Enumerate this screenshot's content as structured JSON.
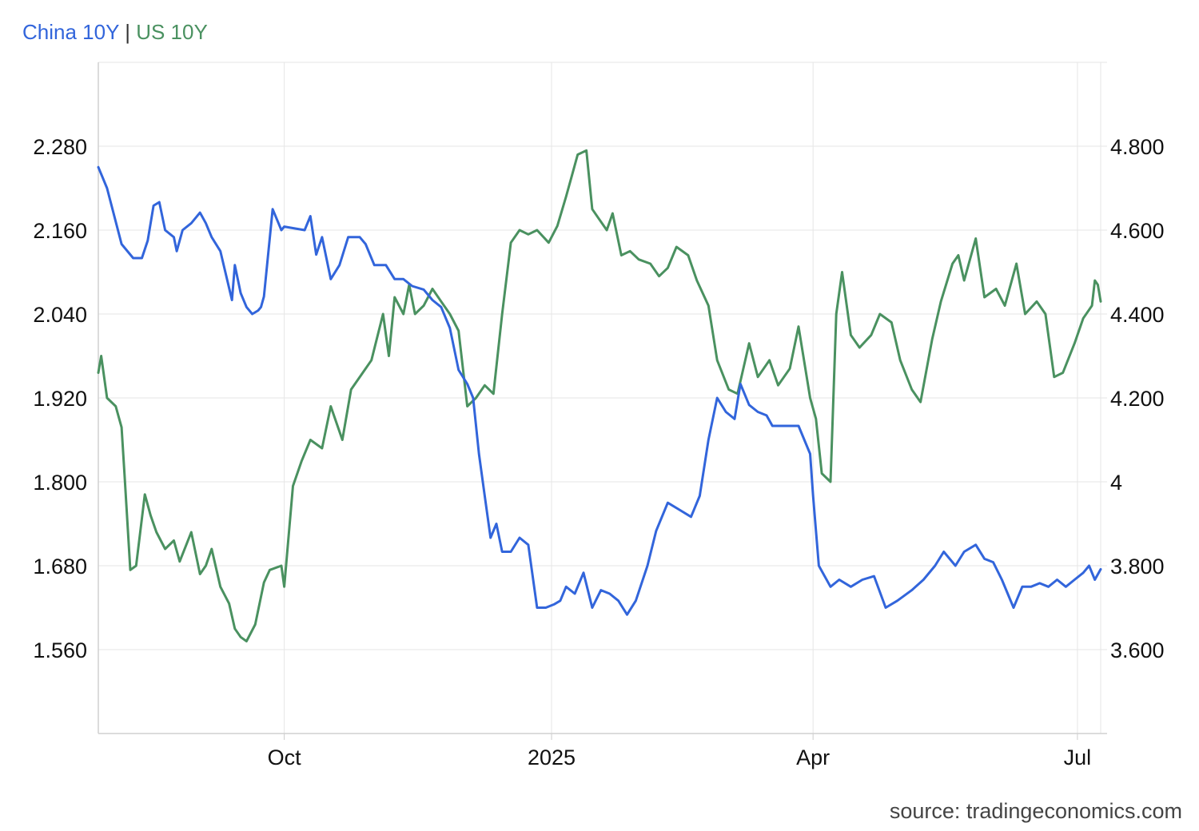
{
  "legend": {
    "china": "China 10Y",
    "separator": "|",
    "us": "US 10Y"
  },
  "source": "source: tradingeconomics.com",
  "colors": {
    "china": "#3265db",
    "us": "#4a9160",
    "grid": "#e6e6e6",
    "separator": "#333333"
  },
  "chart_data": {
    "type": "line",
    "title": "",
    "x_ticks": [
      {
        "label": "Oct",
        "date": "2024-10-01"
      },
      {
        "label": "2025",
        "date": "2025-01-01"
      },
      {
        "label": "Apr",
        "date": "2025-04-01"
      },
      {
        "label": "Jul",
        "date": "2025-07-01"
      }
    ],
    "x_range": [
      "2024-07-29",
      "2025-07-09"
    ],
    "y_left": {
      "ticks": [
        "1.560",
        "1.680",
        "1.800",
        "1.920",
        "2.040",
        "2.160",
        "2.280"
      ],
      "range": [
        1.44,
        2.4
      ]
    },
    "y_right": {
      "ticks": [
        "3.600",
        "3.800",
        "4",
        "4.200",
        "4.400",
        "4.600",
        "4.800"
      ],
      "range": [
        3.4,
        5.0
      ]
    },
    "grid": true,
    "legend_position": "top-left",
    "series": [
      {
        "name": "China 10Y",
        "axis": "left",
        "x": [
          "2024-07-29",
          "2024-08-01",
          "2024-08-06",
          "2024-08-10",
          "2024-08-13",
          "2024-08-15",
          "2024-08-17",
          "2024-08-19",
          "2024-08-21",
          "2024-08-24",
          "2024-08-25",
          "2024-08-27",
          "2024-08-30",
          "2024-09-02",
          "2024-09-04",
          "2024-09-05",
          "2024-09-06",
          "2024-09-09",
          "2024-09-13",
          "2024-09-14",
          "2024-09-16",
          "2024-09-18",
          "2024-09-20",
          "2024-09-22",
          "2024-09-23",
          "2024-09-24",
          "2024-09-27",
          "2024-09-29",
          "2024-09-30",
          "2024-10-01",
          "2024-10-08",
          "2024-10-10",
          "2024-10-12",
          "2024-10-14",
          "2024-10-17",
          "2024-10-20",
          "2024-10-23",
          "2024-10-27",
          "2024-10-29",
          "2024-11-01",
          "2024-11-05",
          "2024-11-08",
          "2024-11-11",
          "2024-11-14",
          "2024-11-18",
          "2024-11-21",
          "2024-11-24",
          "2024-11-27",
          "2024-11-30",
          "2024-12-03",
          "2024-12-05",
          "2024-12-07",
          "2024-12-09",
          "2024-12-11",
          "2024-12-13",
          "2024-12-15",
          "2024-12-18",
          "2024-12-21",
          "2024-12-24",
          "2024-12-27",
          "2024-12-30",
          "2025-01-02",
          "2025-01-04",
          "2025-01-06",
          "2025-01-09",
          "2025-01-12",
          "2025-01-15",
          "2025-01-18",
          "2025-01-21",
          "2025-01-24",
          "2025-01-27",
          "2025-01-30",
          "2025-02-03",
          "2025-02-06",
          "2025-02-10",
          "2025-02-14",
          "2025-02-18",
          "2025-02-21",
          "2025-02-24",
          "2025-02-27",
          "2025-03-02",
          "2025-03-05",
          "2025-03-07",
          "2025-03-10",
          "2025-03-13",
          "2025-03-16",
          "2025-03-18",
          "2025-03-20",
          "2025-03-24",
          "2025-03-27",
          "2025-03-31",
          "2025-04-01",
          "2025-04-03",
          "2025-04-07",
          "2025-04-10",
          "2025-04-14",
          "2025-04-18",
          "2025-04-22",
          "2025-04-26",
          "2025-04-30",
          "2025-05-05",
          "2025-05-09",
          "2025-05-13",
          "2025-05-16",
          "2025-05-20",
          "2025-05-23",
          "2025-05-27",
          "2025-05-30",
          "2025-06-02",
          "2025-06-05",
          "2025-06-09",
          "2025-06-12",
          "2025-06-15",
          "2025-06-18",
          "2025-06-21",
          "2025-06-24",
          "2025-06-27",
          "2025-06-30",
          "2025-07-03",
          "2025-07-05",
          "2025-07-07",
          "2025-07-09"
        ],
        "values": [
          2.25,
          2.22,
          2.14,
          2.12,
          2.12,
          2.145,
          2.195,
          2.2,
          2.16,
          2.15,
          2.13,
          2.16,
          2.17,
          2.185,
          2.17,
          2.16,
          2.15,
          2.13,
          2.06,
          2.11,
          2.07,
          2.05,
          2.04,
          2.045,
          2.05,
          2.065,
          2.19,
          2.17,
          2.16,
          2.165,
          2.16,
          2.18,
          2.125,
          2.15,
          2.09,
          2.11,
          2.15,
          2.15,
          2.14,
          2.11,
          2.11,
          2.09,
          2.09,
          2.08,
          2.075,
          2.06,
          2.05,
          2.02,
          1.96,
          1.94,
          1.92,
          1.84,
          1.78,
          1.72,
          1.74,
          1.7,
          1.7,
          1.72,
          1.71,
          1.62,
          1.62,
          1.625,
          1.63,
          1.65,
          1.64,
          1.67,
          1.62,
          1.645,
          1.64,
          1.63,
          1.61,
          1.63,
          1.68,
          1.73,
          1.77,
          1.76,
          1.75,
          1.78,
          1.86,
          1.92,
          1.9,
          1.89,
          1.94,
          1.91,
          1.9,
          1.895,
          1.88,
          1.88,
          1.88,
          1.88,
          1.84,
          1.78,
          1.68,
          1.65,
          1.66,
          1.65,
          1.66,
          1.665,
          1.62,
          1.63,
          1.645,
          1.66,
          1.68,
          1.7,
          1.68,
          1.7,
          1.71,
          1.69,
          1.685,
          1.66,
          1.62,
          1.65,
          1.65,
          1.655,
          1.65,
          1.66,
          1.65,
          1.66,
          1.67,
          1.68,
          1.66,
          1.675
        ]
      },
      {
        "name": "US 10Y",
        "axis": "right",
        "x": [
          "2024-07-29",
          "2024-07-30",
          "2024-08-01",
          "2024-08-04",
          "2024-08-06",
          "2024-08-07",
          "2024-08-09",
          "2024-08-11",
          "2024-08-14",
          "2024-08-16",
          "2024-08-18",
          "2024-08-21",
          "2024-08-24",
          "2024-08-26",
          "2024-08-30",
          "2024-09-02",
          "2024-09-04",
          "2024-09-06",
          "2024-09-09",
          "2024-09-12",
          "2024-09-14",
          "2024-09-16",
          "2024-09-18",
          "2024-09-21",
          "2024-09-24",
          "2024-09-26",
          "2024-09-30",
          "2024-10-01",
          "2024-10-04",
          "2024-10-07",
          "2024-10-10",
          "2024-10-14",
          "2024-10-17",
          "2024-10-21",
          "2024-10-24",
          "2024-10-28",
          "2024-10-31",
          "2024-11-04",
          "2024-11-06",
          "2024-11-08",
          "2024-11-11",
          "2024-11-13",
          "2024-11-15",
          "2024-11-18",
          "2024-11-21",
          "2024-11-24",
          "2024-11-27",
          "2024-11-30",
          "2024-12-03",
          "2024-12-06",
          "2024-12-09",
          "2024-12-12",
          "2024-12-15",
          "2024-12-18",
          "2024-12-21",
          "2024-12-24",
          "2024-12-27",
          "2024-12-31",
          "2025-01-03",
          "2025-01-06",
          "2025-01-08",
          "2025-01-10",
          "2025-01-13",
          "2025-01-15",
          "2025-01-17",
          "2025-01-20",
          "2025-01-22",
          "2025-01-25",
          "2025-01-28",
          "2025-01-31",
          "2025-02-04",
          "2025-02-07",
          "2025-02-10",
          "2025-02-13",
          "2025-02-17",
          "2025-02-20",
          "2025-02-24",
          "2025-02-27",
          "2025-03-03",
          "2025-03-06",
          "2025-03-10",
          "2025-03-13",
          "2025-03-17",
          "2025-03-20",
          "2025-03-24",
          "2025-03-27",
          "2025-03-31",
          "2025-04-02",
          "2025-04-04",
          "2025-04-07",
          "2025-04-09",
          "2025-04-11",
          "2025-04-14",
          "2025-04-17",
          "2025-04-21",
          "2025-04-24",
          "2025-04-28",
          "2025-05-01",
          "2025-05-05",
          "2025-05-08",
          "2025-05-12",
          "2025-05-15",
          "2025-05-19",
          "2025-05-21",
          "2025-05-23",
          "2025-05-27",
          "2025-05-30",
          "2025-06-03",
          "2025-06-06",
          "2025-06-10",
          "2025-06-13",
          "2025-06-17",
          "2025-06-20",
          "2025-06-23",
          "2025-06-26",
          "2025-06-30",
          "2025-07-03",
          "2025-07-06",
          "2025-07-07",
          "2025-07-08",
          "2025-07-09"
        ],
        "values": [
          4.26,
          4.3,
          4.2,
          4.18,
          4.13,
          4.02,
          3.79,
          3.8,
          3.97,
          3.92,
          3.88,
          3.84,
          3.86,
          3.81,
          3.88,
          3.78,
          3.8,
          3.84,
          3.75,
          3.71,
          3.65,
          3.63,
          3.62,
          3.66,
          3.76,
          3.79,
          3.8,
          3.75,
          3.99,
          4.05,
          4.1,
          4.08,
          4.18,
          4.1,
          4.22,
          4.26,
          4.29,
          4.4,
          4.3,
          4.44,
          4.4,
          4.47,
          4.4,
          4.42,
          4.46,
          4.43,
          4.4,
          4.36,
          4.18,
          4.2,
          4.23,
          4.21,
          4.4,
          4.57,
          4.6,
          4.59,
          4.6,
          4.57,
          4.61,
          4.68,
          4.73,
          4.78,
          4.79,
          4.65,
          4.63,
          4.6,
          4.64,
          4.54,
          4.55,
          4.53,
          4.52,
          4.49,
          4.51,
          4.56,
          4.54,
          4.48,
          4.42,
          4.29,
          4.22,
          4.21,
          4.33,
          4.25,
          4.29,
          4.23,
          4.27,
          4.37,
          4.2,
          4.15,
          4.02,
          4.0,
          4.4,
          4.5,
          4.35,
          4.32,
          4.35,
          4.4,
          4.38,
          4.29,
          4.22,
          4.19,
          4.34,
          4.43,
          4.52,
          4.54,
          4.48,
          4.58,
          4.44,
          4.46,
          4.42,
          4.52,
          4.4,
          4.43,
          4.4,
          4.25,
          4.26,
          4.33,
          4.39,
          4.42,
          4.48,
          4.47,
          4.43
        ]
      }
    ]
  }
}
